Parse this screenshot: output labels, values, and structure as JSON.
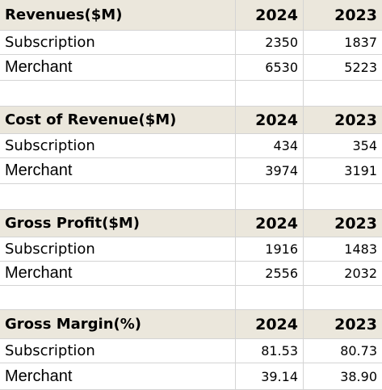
{
  "sections": [
    {
      "title": "Revenues($M)",
      "year1": "2024",
      "year2": "2023",
      "rows": [
        {
          "label": "Subscription",
          "v1": "2350",
          "v2": "1837"
        },
        {
          "label": "Merchant",
          "v1": "6530",
          "v2": "5223"
        }
      ]
    },
    {
      "title": "Cost of Revenue($M)",
      "year1": "2024",
      "year2": "2023",
      "rows": [
        {
          "label": "Subscription",
          "v1": "434",
          "v2": "354"
        },
        {
          "label": "Merchant",
          "v1": "3974",
          "v2": "3191"
        }
      ]
    },
    {
      "title": "Gross Profit($M)",
      "year1": "2024",
      "year2": "2023",
      "rows": [
        {
          "label": "Subscription",
          "v1": "1916",
          "v2": "1483"
        },
        {
          "label": "Merchant",
          "v1": "2556",
          "v2": "2032"
        }
      ]
    },
    {
      "title": "Gross Margin(%)",
      "year1": "2024",
      "year2": "2023",
      "rows": [
        {
          "label": "Subscription",
          "v1": "81.53",
          "v2": "80.73"
        },
        {
          "label": "Merchant",
          "v1": "39.14",
          "v2": "38.90"
        }
      ]
    }
  ]
}
